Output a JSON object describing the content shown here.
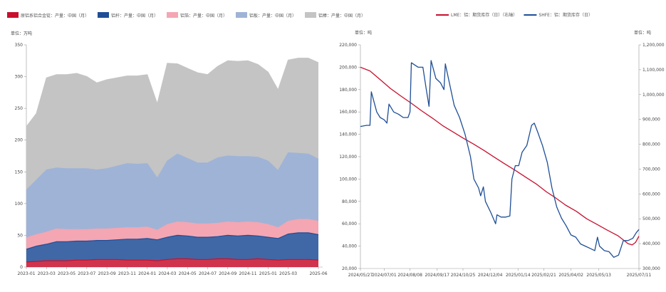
{
  "chart_data": [
    {
      "type": "area",
      "stacked": true,
      "unit_label": "单位：万吨",
      "ylim": [
        0,
        350
      ],
      "y_ticks": [
        0,
        50,
        100,
        150,
        200,
        250,
        300,
        350
      ],
      "categories": [
        "2023-01",
        "2023-02",
        "2023-03",
        "2023-04",
        "2023-05",
        "2023-06",
        "2023-07",
        "2023-08",
        "2023-09",
        "2023-10",
        "2023-11",
        "2023-12",
        "2024-01",
        "2024-02",
        "2024-03",
        "2024-04",
        "2024-05",
        "2024-06",
        "2024-07",
        "2024-08",
        "2024-09",
        "2024-10",
        "2024-11",
        "2024-12",
        "2025-01",
        "2025-02",
        "2025-03",
        "2025-04",
        "2025-05",
        "2025-06"
      ],
      "x_tick_labels": [
        "2023-01",
        "2023-03",
        "2023-05",
        "2023-07",
        "2023-09",
        "2023-11",
        "2024-01",
        "2024-03",
        "2024-05",
        "2024-07",
        "2024-09",
        "2024-11",
        "2025-01",
        "2025-03",
        "2025-06"
      ],
      "legend_position": "top",
      "series": [
        {
          "name": "原铝系铝合金锭：产量：中国（月）",
          "color": "#c8102e",
          "values": [
            8,
            9,
            10,
            10,
            10,
            11,
            11,
            12,
            12,
            12,
            11,
            11,
            11,
            10,
            12,
            13,
            13,
            12,
            12,
            13,
            13,
            12,
            12,
            13,
            12,
            11,
            12,
            12,
            12,
            11
          ]
        },
        {
          "name": "铝杆：产量：中国（月）",
          "color": "#1f4e96",
          "values": [
            20,
            24,
            26,
            30,
            30,
            30,
            30,
            30,
            30,
            31,
            33,
            33,
            34,
            33,
            35,
            37,
            36,
            35,
            35,
            35,
            37,
            37,
            38,
            36,
            35,
            34,
            40,
            42,
            42,
            40
          ]
        },
        {
          "name": "铝箔：产量：中国（月）",
          "color": "#f4a6b2",
          "values": [
            18,
            18,
            19,
            20,
            19,
            18,
            18,
            18,
            18,
            18,
            18,
            18,
            18,
            15,
            20,
            21,
            21,
            21,
            21,
            21,
            21,
            21,
            21,
            21,
            20,
            17,
            20,
            21,
            21,
            21
          ]
        },
        {
          "name": "铝板：产量：中国（月）",
          "color": "#9fb3d6",
          "values": [
            75,
            86,
            98,
            96,
            96,
            96,
            96,
            93,
            95,
            98,
            101,
            100,
            100,
            82,
            100,
            107,
            101,
            96,
            96,
            103,
            104,
            104,
            103,
            103,
            100,
            90,
            108,
            104,
            103,
            98
          ]
        },
        {
          "name": "铝棒：产量：中国（月）",
          "color": "#c4c4c4",
          "values": [
            100,
            105,
            145,
            147,
            148,
            150,
            145,
            137,
            140,
            139,
            138,
            139,
            140,
            117,
            154,
            142,
            142,
            142,
            139,
            144,
            150,
            150,
            151,
            146,
            140,
            127,
            146,
            150,
            151,
            152
          ]
        }
      ]
    },
    {
      "type": "line",
      "unit_label_left": "单位：吨",
      "unit_label_right": "单位：吨",
      "ylim_left": [
        20000,
        220000
      ],
      "y_ticks_left": [
        "20,000",
        "40,000",
        "60,000",
        "80,000",
        "100,000",
        "120,000",
        "140,000",
        "160,000",
        "180,000",
        "200,000",
        "220,000"
      ],
      "ylim_right": [
        300000,
        1200000
      ],
      "y_ticks_right": [
        "300,000",
        "400,000",
        "500,000",
        "600,000",
        "700,000",
        "800,000",
        "900,000",
        "1,000,000",
        "1,100,000",
        "1,200,000"
      ],
      "x_range": [
        "2024-05-27",
        "2025-07-11"
      ],
      "x_tick_labels": [
        "2024/05/27",
        "2024/07/01",
        "2024/08/08",
        "2024/09/17",
        "2024/10/25",
        "2024/12/04",
        "2025/01/14",
        "2025/02/21",
        "2025/04/02",
        "2025/05/13",
        "2025/07/11"
      ],
      "legend_position": "top",
      "series": [
        {
          "name": "LME：铝：期货库存（日）（右轴）",
          "color": "#c8102e",
          "axis": "right",
          "points": [
            [
              "2024-05-27",
              1110000
            ],
            [
              "2024-06-10",
              1095000
            ],
            [
              "2024-06-25",
              1060000
            ],
            [
              "2024-07-10",
              1025000
            ],
            [
              "2024-07-25",
              995000
            ],
            [
              "2024-08-10",
              965000
            ],
            [
              "2024-08-25",
              935000
            ],
            [
              "2024-09-10",
              905000
            ],
            [
              "2024-09-25",
              875000
            ],
            [
              "2024-10-10",
              850000
            ],
            [
              "2024-10-25",
              825000
            ],
            [
              "2024-11-10",
              800000
            ],
            [
              "2024-11-25",
              775000
            ],
            [
              "2024-12-10",
              748000
            ],
            [
              "2024-12-25",
              722000
            ],
            [
              "2025-01-10",
              695000
            ],
            [
              "2025-01-25",
              668000
            ],
            [
              "2025-02-10",
              640000
            ],
            [
              "2025-02-25",
              608000
            ],
            [
              "2025-03-10",
              585000
            ],
            [
              "2025-03-25",
              555000
            ],
            [
              "2025-04-10",
              530000
            ],
            [
              "2025-04-25",
              500000
            ],
            [
              "2025-05-10",
              478000
            ],
            [
              "2025-05-25",
              455000
            ],
            [
              "2025-06-10",
              432000
            ],
            [
              "2025-06-25",
              400000
            ],
            [
              "2025-07-01",
              395000
            ],
            [
              "2025-07-06",
              405000
            ],
            [
              "2025-07-11",
              430000
            ]
          ]
        },
        {
          "name": "SHFE：铝：期货库存（日）",
          "color": "#1f4e96",
          "axis": "left",
          "points": [
            [
              "2024-05-27",
              147000
            ],
            [
              "2024-06-05",
              148000
            ],
            [
              "2024-06-10",
              148000
            ],
            [
              "2024-06-12",
              178000
            ],
            [
              "2024-06-20",
              160000
            ],
            [
              "2024-06-25",
              155000
            ],
            [
              "2024-07-01",
              153000
            ],
            [
              "2024-07-05",
              150000
            ],
            [
              "2024-07-08",
              167000
            ],
            [
              "2024-07-15",
              160000
            ],
            [
              "2024-07-22",
              158000
            ],
            [
              "2024-07-29",
              155000
            ],
            [
              "2024-08-05",
              155000
            ],
            [
              "2024-08-08",
              160000
            ],
            [
              "2024-08-10",
              204000
            ],
            [
              "2024-08-20",
              200000
            ],
            [
              "2024-08-27",
              200000
            ],
            [
              "2024-09-01",
              180000
            ],
            [
              "2024-09-05",
              165000
            ],
            [
              "2024-09-08",
              206000
            ],
            [
              "2024-09-15",
              190000
            ],
            [
              "2024-09-22",
              186000
            ],
            [
              "2024-09-27",
              180000
            ],
            [
              "2024-09-29",
              203000
            ],
            [
              "2024-10-05",
              186000
            ],
            [
              "2024-10-12",
              166000
            ],
            [
              "2024-10-20",
              155000
            ],
            [
              "2024-10-28",
              140000
            ],
            [
              "2024-11-05",
              120000
            ],
            [
              "2024-11-10",
              100000
            ],
            [
              "2024-11-17",
              92000
            ],
            [
              "2024-11-20",
              85000
            ],
            [
              "2024-11-24",
              93000
            ],
            [
              "2024-11-27",
              80000
            ],
            [
              "2024-12-05",
              70000
            ],
            [
              "2024-12-12",
              60000
            ],
            [
              "2024-12-14",
              68000
            ],
            [
              "2024-12-20",
              66000
            ],
            [
              "2024-12-27",
              66000
            ],
            [
              "2025-01-02",
              67000
            ],
            [
              "2025-01-05",
              100000
            ],
            [
              "2025-01-10",
              112000
            ],
            [
              "2025-01-15",
              112000
            ],
            [
              "2025-01-20",
              124000
            ],
            [
              "2025-01-27",
              130000
            ],
            [
              "2025-02-03",
              148000
            ],
            [
              "2025-02-07",
              150000
            ],
            [
              "2025-02-12",
              142000
            ],
            [
              "2025-02-19",
              130000
            ],
            [
              "2025-02-26",
              115000
            ],
            [
              "2025-03-05",
              92000
            ],
            [
              "2025-03-12",
              75000
            ],
            [
              "2025-03-19",
              65000
            ],
            [
              "2025-03-26",
              58000
            ],
            [
              "2025-04-02",
              50000
            ],
            [
              "2025-04-09",
              48000
            ],
            [
              "2025-04-16",
              42000
            ],
            [
              "2025-04-23",
              40000
            ],
            [
              "2025-04-30",
              38000
            ],
            [
              "2025-05-07",
              36000
            ],
            [
              "2025-05-11",
              48000
            ],
            [
              "2025-05-14",
              40000
            ],
            [
              "2025-05-21",
              36000
            ],
            [
              "2025-05-28",
              35000
            ],
            [
              "2025-06-04",
              30000
            ],
            [
              "2025-06-11",
              32000
            ],
            [
              "2025-06-18",
              45000
            ],
            [
              "2025-06-25",
              45000
            ],
            [
              "2025-07-02",
              47000
            ],
            [
              "2025-07-07",
              52000
            ],
            [
              "2025-07-11",
              55000
            ]
          ]
        }
      ]
    }
  ]
}
